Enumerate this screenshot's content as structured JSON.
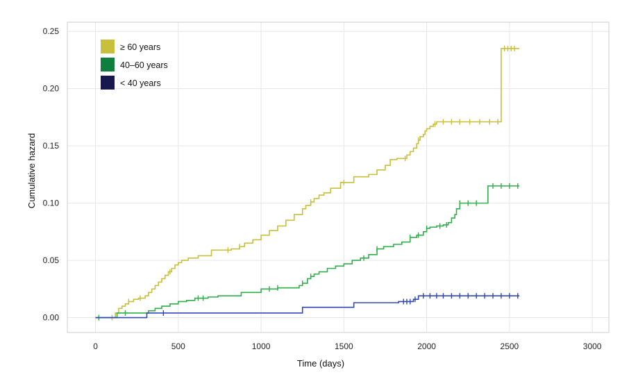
{
  "chart_data": {
    "type": "line",
    "title": "",
    "xlabel": "Time (days)",
    "ylabel": "Cumulative hazard",
    "xlim": [
      -170,
      3100
    ],
    "ylim": [
      -0.013,
      0.258
    ],
    "xticks": [
      0,
      500,
      1000,
      1500,
      2000,
      2500,
      3000
    ],
    "xtick_labels": [
      "0",
      "500",
      "1000",
      "1500",
      "2000",
      "2500",
      "3000"
    ],
    "yticks": [
      0.0,
      0.05,
      0.1,
      0.15,
      0.2,
      0.25
    ],
    "ytick_labels": [
      "0.00",
      "0.05",
      "0.10",
      "0.15",
      "0.20",
      "0.25"
    ],
    "grid": true,
    "step": true,
    "legend_position": "top-left",
    "series": [
      {
        "name": "≥ 60 years",
        "color": "#c8bf3a",
        "x": [
          0,
          120,
          140,
          160,
          180,
          200,
          230,
          260,
          300,
          320,
          340,
          360,
          380,
          400,
          420,
          440,
          460,
          480,
          500,
          520,
          560,
          620,
          700,
          820,
          870,
          900,
          950,
          1000,
          1050,
          1100,
          1150,
          1200,
          1250,
          1270,
          1300,
          1320,
          1350,
          1380,
          1420,
          1480,
          1560,
          1650,
          1700,
          1750,
          1780,
          1820,
          1880,
          1900,
          1920,
          1940,
          1950,
          1960,
          1980,
          1990,
          2000,
          2020,
          2040,
          2060,
          2450,
          2560
        ],
        "y": [
          0,
          0.004,
          0.008,
          0.01,
          0.012,
          0.014,
          0.016,
          0.017,
          0.019,
          0.022,
          0.025,
          0.028,
          0.031,
          0.034,
          0.037,
          0.04,
          0.043,
          0.046,
          0.048,
          0.05,
          0.052,
          0.054,
          0.059,
          0.06,
          0.062,
          0.065,
          0.068,
          0.072,
          0.076,
          0.08,
          0.085,
          0.09,
          0.095,
          0.098,
          0.101,
          0.104,
          0.107,
          0.109,
          0.113,
          0.118,
          0.123,
          0.125,
          0.129,
          0.133,
          0.138,
          0.139,
          0.142,
          0.145,
          0.148,
          0.152,
          0.155,
          0.158,
          0.16,
          0.163,
          0.165,
          0.167,
          0.169,
          0.171,
          0.235,
          0.235
        ],
        "censored_x": [
          100,
          200,
          270,
          450,
          800,
          870,
          1300,
          1500,
          1870,
          1950,
          2050,
          2100,
          2150,
          2200,
          2260,
          2320,
          2380,
          2430,
          2470,
          2490,
          2510,
          2530
        ]
      },
      {
        "name": "40–60 years",
        "color": "#2fae4a",
        "x": [
          0,
          130,
          320,
          360,
          400,
          450,
          500,
          550,
          600,
          680,
          740,
          880,
          1000,
          1100,
          1200,
          1230,
          1250,
          1280,
          1300,
          1320,
          1350,
          1400,
          1450,
          1500,
          1550,
          1600,
          1650,
          1700,
          1740,
          1800,
          1850,
          1900,
          1940,
          1980,
          2000,
          2020,
          2060,
          2100,
          2130,
          2150,
          2170,
          2180,
          2200,
          2370,
          2560
        ],
        "y": [
          0,
          0.004,
          0.006,
          0.008,
          0.01,
          0.012,
          0.014,
          0.015,
          0.017,
          0.018,
          0.019,
          0.022,
          0.025,
          0.026,
          0.026,
          0.028,
          0.03,
          0.034,
          0.036,
          0.038,
          0.04,
          0.043,
          0.045,
          0.047,
          0.05,
          0.052,
          0.055,
          0.06,
          0.062,
          0.064,
          0.066,
          0.07,
          0.072,
          0.075,
          0.078,
          0.079,
          0.08,
          0.081,
          0.083,
          0.087,
          0.09,
          0.095,
          0.1,
          0.115,
          0.115
        ],
        "censored_x": [
          20,
          180,
          620,
          650,
          1050,
          1100,
          1250,
          1300,
          1620,
          1700,
          1900,
          1950,
          2000,
          2080,
          2120,
          2200,
          2250,
          2300,
          2400,
          2450,
          2500,
          2550
        ]
      },
      {
        "name": "< 40 years",
        "color": "#3346b8",
        "x": [
          0,
          310,
          1250,
          1560,
          1830,
          1920,
          1950,
          2560
        ],
        "y": [
          0,
          0.004,
          0.009,
          0.013,
          0.014,
          0.016,
          0.019,
          0.019
        ],
        "censored_x": [
          410,
          1860,
          1880,
          1900,
          1930,
          1980,
          2020,
          2060,
          2100,
          2150,
          2200,
          2250,
          2300,
          2350,
          2400,
          2450,
          2500,
          2550
        ]
      }
    ]
  },
  "legend": {
    "entries": [
      {
        "label": "≥  60 years",
        "color": "#c8bf3a"
      },
      {
        "label": "40–60 years",
        "color": "#0e7f3d"
      },
      {
        "label": "< 40 years",
        "color": "#18184e"
      }
    ]
  }
}
